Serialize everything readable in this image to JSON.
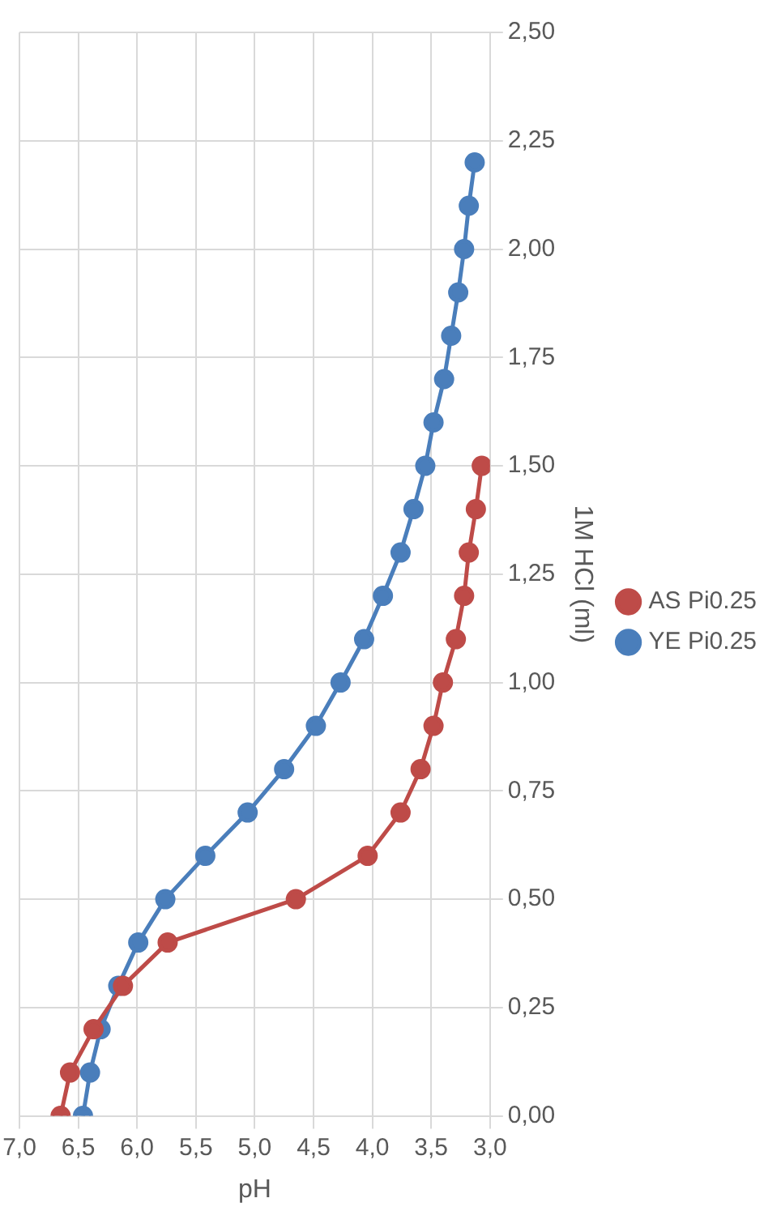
{
  "chart_data": {
    "type": "line",
    "xlabel": "pH",
    "ylabel": "1M HCl (ml)",
    "series": [
      {
        "name": "YE Pi0.25",
        "color": "#4a7ebb",
        "x": [
          6.46,
          6.4,
          6.31,
          6.16,
          5.99,
          5.76,
          5.42,
          5.06,
          4.75,
          4.48,
          4.27,
          4.07,
          3.91,
          3.76,
          3.65,
          3.55,
          3.48,
          3.39,
          3.33,
          3.27,
          3.22,
          3.18,
          3.13
        ],
        "values": [
          0,
          0.1,
          0.2,
          0.3,
          0.4,
          0.5,
          0.6,
          0.7,
          0.8,
          0.9,
          1.0,
          1.1,
          1.2,
          1.3,
          1.4,
          1.5,
          1.6,
          1.7,
          1.8,
          1.9,
          2.0,
          2.1,
          2.2
        ]
      },
      {
        "name": "AS Pi0.25",
        "color": "#be4b48",
        "x": [
          6.65,
          6.57,
          6.37,
          6.12,
          5.74,
          4.65,
          4.04,
          3.76,
          3.59,
          3.48,
          3.4,
          3.29,
          3.22,
          3.18,
          3.12,
          3.07
        ],
        "values": [
          0,
          0.1,
          0.2,
          0.3,
          0.4,
          0.5,
          0.6,
          0.7,
          0.8,
          0.9,
          1.0,
          1.1,
          1.2,
          1.3,
          1.4,
          1.5
        ]
      }
    ],
    "xlim": [
      7,
      3
    ],
    "xticks": [
      {
        "value": 3,
        "label": "3,0"
      },
      {
        "value": 3.5,
        "label": "3,5"
      },
      {
        "value": 4,
        "label": "4,0"
      },
      {
        "value": 4.5,
        "label": "4,5"
      },
      {
        "value": 5,
        "label": "5,0"
      },
      {
        "value": 5.5,
        "label": "5,5"
      },
      {
        "value": 6,
        "label": "6,0"
      },
      {
        "value": 6.5,
        "label": "6,5"
      },
      {
        "value": 7,
        "label": "7,0"
      }
    ],
    "ylim": [
      0,
      2.5
    ],
    "yticks": [
      {
        "value": 0,
        "label": "0,00"
      },
      {
        "value": 0.25,
        "label": "0,25"
      },
      {
        "value": 0.5,
        "label": "0,50"
      },
      {
        "value": 0.75,
        "label": "0,75"
      },
      {
        "value": 1,
        "label": "1,00"
      },
      {
        "value": 1.25,
        "label": "1,25"
      },
      {
        "value": 1.5,
        "label": "1,50"
      },
      {
        "value": 1.75,
        "label": "1,75"
      },
      {
        "value": 2,
        "label": "2,00"
      },
      {
        "value": 2.25,
        "label": "2,25"
      },
      {
        "value": 2.5,
        "label": "2,50"
      }
    ],
    "grid": true,
    "legend": "right",
    "marker": "circle",
    "line_style": "solid"
  }
}
